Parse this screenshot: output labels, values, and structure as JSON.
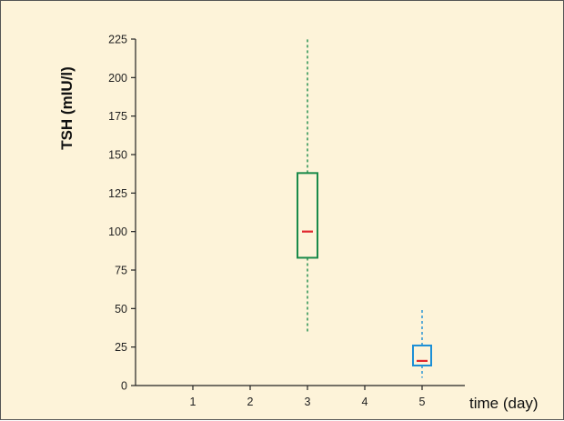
{
  "chart_data": {
    "type": "box",
    "xlabel": "time (day)",
    "ylabel": "TSH (mIU/l)",
    "title": "",
    "x_ticks": [
      1,
      2,
      3,
      4,
      5
    ],
    "y_ticks": [
      0,
      25,
      50,
      75,
      100,
      125,
      150,
      175,
      200,
      225
    ],
    "ylim": [
      0,
      225
    ],
    "xlim": [
      0,
      5.7
    ],
    "grid": false,
    "boxes": [
      {
        "x": 3,
        "whisker_low": 34,
        "q1": 83,
        "median": 100,
        "q3": 138,
        "whisker_high": 225
      },
      {
        "x": 5,
        "whisker_low": 5,
        "q1": 13,
        "median": 16,
        "q3": 26,
        "whisker_high": 50
      }
    ],
    "colors": {
      "background": "#fdf3d9",
      "box_day3": "#1a8a4a",
      "box_day5": "#1c8fd6",
      "median": "#e0262e",
      "axis": "#222222"
    }
  }
}
